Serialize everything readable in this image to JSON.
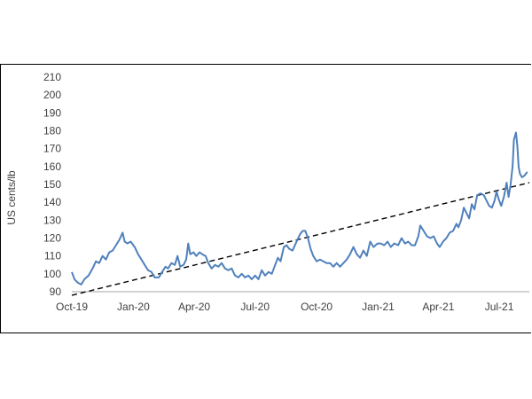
{
  "chart_data": {
    "type": "line",
    "ylabel": "US cents/lb",
    "xlabel": "",
    "ylim": [
      90,
      210
    ],
    "yticks": [
      90,
      100,
      110,
      120,
      130,
      140,
      150,
      160,
      170,
      180,
      190,
      200,
      210
    ],
    "xticks": [
      "Oct-19",
      "Jan-20",
      "Apr-20",
      "Jul-20",
      "Oct-20",
      "Jan-21",
      "Apr-21",
      "Jul-21"
    ],
    "x_start": "2019-10-01",
    "x_end": "2021-08-15",
    "grid": false,
    "legend": "none",
    "colors": {
      "series": "#4f81bd",
      "trend": "#000000",
      "axis": "#a6a6a6"
    },
    "series": [
      {
        "points": [
          [
            "2019-10-01",
            101
          ],
          [
            "2019-10-05",
            97
          ],
          [
            "2019-10-10",
            95
          ],
          [
            "2019-10-15",
            94
          ],
          [
            "2019-10-20",
            97
          ],
          [
            "2019-10-26",
            99
          ],
          [
            "2019-11-01",
            103
          ],
          [
            "2019-11-06",
            107
          ],
          [
            "2019-11-11",
            106
          ],
          [
            "2019-11-16",
            110
          ],
          [
            "2019-11-21",
            108
          ],
          [
            "2019-11-26",
            112
          ],
          [
            "2019-12-01",
            113
          ],
          [
            "2019-12-06",
            116
          ],
          [
            "2019-12-11",
            119
          ],
          [
            "2019-12-16",
            123
          ],
          [
            "2019-12-19",
            118
          ],
          [
            "2019-12-23",
            117
          ],
          [
            "2019-12-28",
            118
          ],
          [
            "2020-01-03",
            115
          ],
          [
            "2020-01-08",
            111
          ],
          [
            "2020-01-13",
            108
          ],
          [
            "2020-01-18",
            105
          ],
          [
            "2020-01-23",
            102
          ],
          [
            "2020-01-28",
            101
          ],
          [
            "2020-02-02",
            98
          ],
          [
            "2020-02-08",
            98
          ],
          [
            "2020-02-13",
            101
          ],
          [
            "2020-02-18",
            104
          ],
          [
            "2020-02-22",
            103
          ],
          [
            "2020-02-27",
            106
          ],
          [
            "2020-03-03",
            105
          ],
          [
            "2020-03-07",
            110
          ],
          [
            "2020-03-11",
            104
          ],
          [
            "2020-03-16",
            105
          ],
          [
            "2020-03-20",
            108
          ],
          [
            "2020-03-23",
            117
          ],
          [
            "2020-03-26",
            111
          ],
          [
            "2020-03-31",
            112
          ],
          [
            "2020-04-04",
            110
          ],
          [
            "2020-04-09",
            112
          ],
          [
            "2020-04-13",
            111
          ],
          [
            "2020-04-18",
            110
          ],
          [
            "2020-04-22",
            106
          ],
          [
            "2020-04-27",
            103
          ],
          [
            "2020-05-02",
            105
          ],
          [
            "2020-05-07",
            104
          ],
          [
            "2020-05-12",
            106
          ],
          [
            "2020-05-17",
            103
          ],
          [
            "2020-05-22",
            102
          ],
          [
            "2020-05-27",
            103
          ],
          [
            "2020-06-01",
            99
          ],
          [
            "2020-06-06",
            98
          ],
          [
            "2020-06-11",
            100
          ],
          [
            "2020-06-16",
            98
          ],
          [
            "2020-06-21",
            99
          ],
          [
            "2020-06-26",
            97
          ],
          [
            "2020-07-01",
            99
          ],
          [
            "2020-07-06",
            97
          ],
          [
            "2020-07-11",
            102
          ],
          [
            "2020-07-16",
            99
          ],
          [
            "2020-07-21",
            101
          ],
          [
            "2020-07-26",
            100
          ],
          [
            "2020-07-31",
            105
          ],
          [
            "2020-08-04",
            109
          ],
          [
            "2020-08-08",
            107
          ],
          [
            "2020-08-13",
            115
          ],
          [
            "2020-08-17",
            116
          ],
          [
            "2020-08-21",
            114
          ],
          [
            "2020-08-26",
            113
          ],
          [
            "2020-09-01",
            118
          ],
          [
            "2020-09-06",
            122
          ],
          [
            "2020-09-10",
            124
          ],
          [
            "2020-09-14",
            124
          ],
          [
            "2020-09-18",
            120
          ],
          [
            "2020-09-22",
            114
          ],
          [
            "2020-09-26",
            110
          ],
          [
            "2020-10-01",
            107
          ],
          [
            "2020-10-06",
            108
          ],
          [
            "2020-10-11",
            107
          ],
          [
            "2020-10-16",
            106
          ],
          [
            "2020-10-21",
            106
          ],
          [
            "2020-10-26",
            104
          ],
          [
            "2020-10-31",
            106
          ],
          [
            "2020-11-05",
            104
          ],
          [
            "2020-11-10",
            106
          ],
          [
            "2020-11-15",
            108
          ],
          [
            "2020-11-20",
            111
          ],
          [
            "2020-11-25",
            115
          ],
          [
            "2020-11-30",
            111
          ],
          [
            "2020-12-05",
            109
          ],
          [
            "2020-12-10",
            113
          ],
          [
            "2020-12-15",
            110
          ],
          [
            "2020-12-20",
            118
          ],
          [
            "2020-12-25",
            115
          ],
          [
            "2020-12-31",
            117
          ],
          [
            "2021-01-05",
            117
          ],
          [
            "2021-01-10",
            116
          ],
          [
            "2021-01-15",
            118
          ],
          [
            "2021-01-20",
            115
          ],
          [
            "2021-01-25",
            117
          ],
          [
            "2021-01-31",
            116
          ],
          [
            "2021-02-05",
            120
          ],
          [
            "2021-02-10",
            117
          ],
          [
            "2021-02-15",
            118
          ],
          [
            "2021-02-20",
            116
          ],
          [
            "2021-02-25",
            116
          ],
          [
            "2021-03-02",
            121
          ],
          [
            "2021-03-05",
            127
          ],
          [
            "2021-03-10",
            124
          ],
          [
            "2021-03-15",
            121
          ],
          [
            "2021-03-20",
            120
          ],
          [
            "2021-03-25",
            121
          ],
          [
            "2021-03-30",
            117
          ],
          [
            "2021-04-03",
            115
          ],
          [
            "2021-04-08",
            118
          ],
          [
            "2021-04-13",
            120
          ],
          [
            "2021-04-18",
            123
          ],
          [
            "2021-04-23",
            124
          ],
          [
            "2021-04-28",
            128
          ],
          [
            "2021-05-01",
            126
          ],
          [
            "2021-05-05",
            130
          ],
          [
            "2021-05-09",
            137
          ],
          [
            "2021-05-13",
            134
          ],
          [
            "2021-05-17",
            131
          ],
          [
            "2021-05-21",
            139
          ],
          [
            "2021-05-25",
            136
          ],
          [
            "2021-05-29",
            144
          ],
          [
            "2021-06-03",
            145
          ],
          [
            "2021-06-08",
            144
          ],
          [
            "2021-06-12",
            141
          ],
          [
            "2021-06-16",
            138
          ],
          [
            "2021-06-20",
            137
          ],
          [
            "2021-06-24",
            141
          ],
          [
            "2021-06-27",
            146
          ],
          [
            "2021-06-30",
            142
          ],
          [
            "2021-07-04",
            138
          ],
          [
            "2021-07-08",
            143
          ],
          [
            "2021-07-12",
            151
          ],
          [
            "2021-07-15",
            143
          ],
          [
            "2021-07-18",
            150
          ],
          [
            "2021-07-21",
            160
          ],
          [
            "2021-07-23",
            175
          ],
          [
            "2021-07-26",
            179
          ],
          [
            "2021-07-28",
            172
          ],
          [
            "2021-07-30",
            160
          ],
          [
            "2021-08-01",
            156
          ],
          [
            "2021-08-04",
            154
          ],
          [
            "2021-08-08",
            155
          ],
          [
            "2021-08-12",
            157
          ]
        ]
      }
    ],
    "trendline": {
      "style": "dashed",
      "points": [
        [
          "2019-10-01",
          88
        ],
        [
          "2021-08-15",
          151
        ]
      ]
    }
  }
}
